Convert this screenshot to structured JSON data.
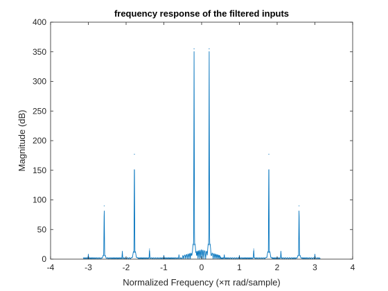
{
  "chart_data": {
    "type": "line",
    "title": "frequency response of the filtered inputs",
    "xlabel": "Normalized Frequency (×π rad/sample)",
    "ylabel": "Magnitude (dB)",
    "xlim": [
      -4,
      4
    ],
    "ylim": [
      0,
      400
    ],
    "xticks": [
      -4,
      -3,
      -2,
      -1,
      0,
      1,
      2,
      3,
      4
    ],
    "yticks": [
      0,
      50,
      100,
      150,
      200,
      250,
      300,
      350,
      400
    ],
    "xtick_labels": [
      "-4",
      "-3",
      "-2",
      "-1",
      "0",
      "1",
      "2",
      "3",
      "4"
    ],
    "ytick_labels": [
      "0",
      "50",
      "100",
      "150",
      "200",
      "250",
      "300",
      "350",
      "400"
    ],
    "grid": false,
    "line_color": "#0072BD",
    "signal_range": [
      -3.14,
      3.14
    ],
    "peaks": [
      {
        "x": -3.0,
        "y": 8
      },
      {
        "x": -2.58,
        "y": 90
      },
      {
        "x": -2.1,
        "y": 13
      },
      {
        "x": -1.78,
        "y": 177
      },
      {
        "x": -1.38,
        "y": 17
      },
      {
        "x": -1.0,
        "y": 6
      },
      {
        "x": -0.6,
        "y": 7
      },
      {
        "x": -0.2,
        "y": 355
      },
      {
        "x": 0.2,
        "y": 355
      },
      {
        "x": 0.6,
        "y": 7
      },
      {
        "x": 1.0,
        "y": 6
      },
      {
        "x": 1.38,
        "y": 17
      },
      {
        "x": 1.78,
        "y": 177
      },
      {
        "x": 2.1,
        "y": 13
      },
      {
        "x": 2.58,
        "y": 90
      },
      {
        "x": 3.0,
        "y": 8
      }
    ]
  }
}
